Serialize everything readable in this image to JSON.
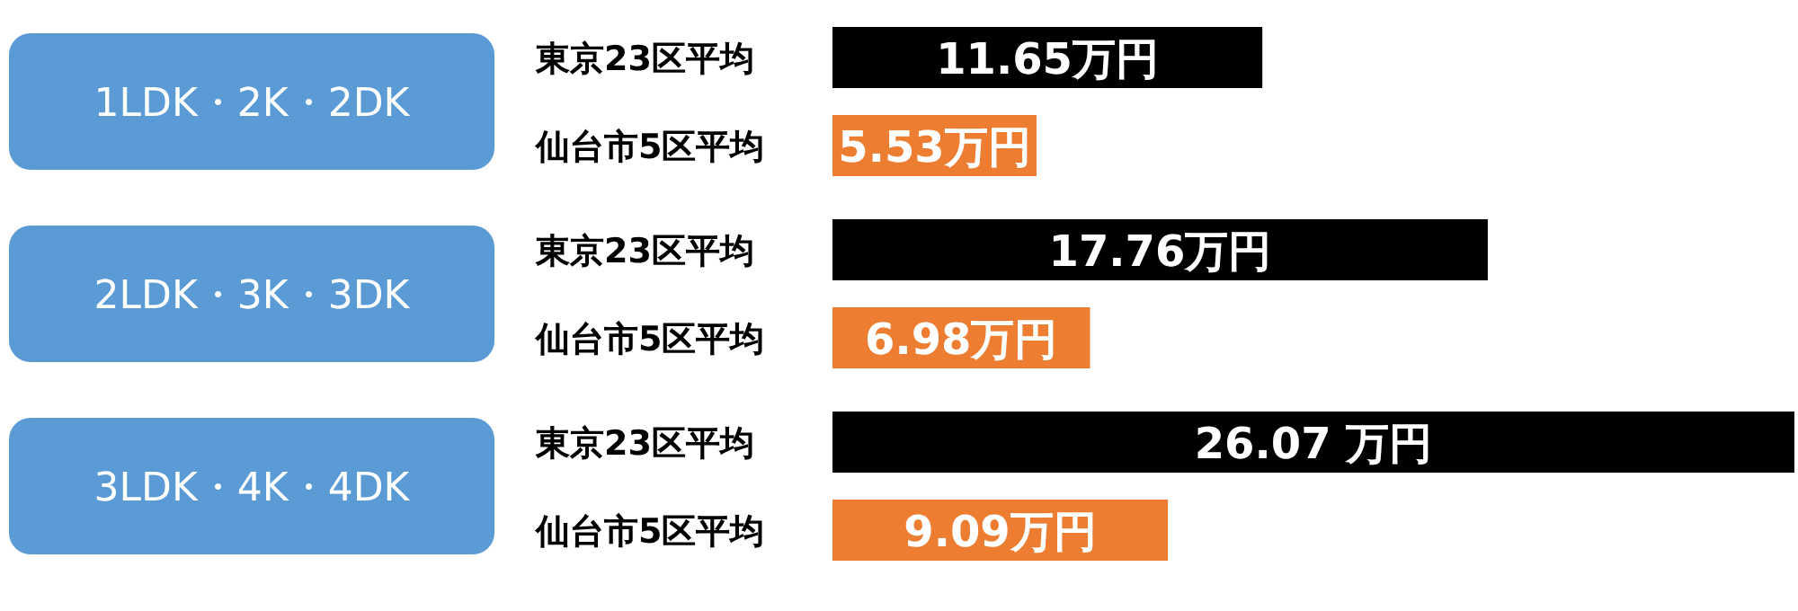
{
  "chart_data": {
    "type": "bar",
    "orientation": "horizontal",
    "categories": [
      "東京23区平均",
      "仙台市5区平均",
      "東京23区平均",
      "仙台市5区平均",
      "東京23区平均",
      "仙台市5区平均"
    ],
    "values": [
      11.65,
      5.53,
      17.76,
      6.98,
      26.07,
      9.09
    ],
    "colors": [
      "#000000",
      "#ed7d31",
      "#000000",
      "#ed7d31",
      "#000000",
      "#ed7d31"
    ],
    "value_labels": [
      "11.65万円",
      "5.53万円",
      "17.76万円",
      "6.98万円",
      "26.07 万円",
      "9.09万円"
    ],
    "annotations": [
      "1LDK・2K・2DK",
      "2LDK・3K・3DK",
      "3LDK・4K・4DK"
    ]
  }
}
